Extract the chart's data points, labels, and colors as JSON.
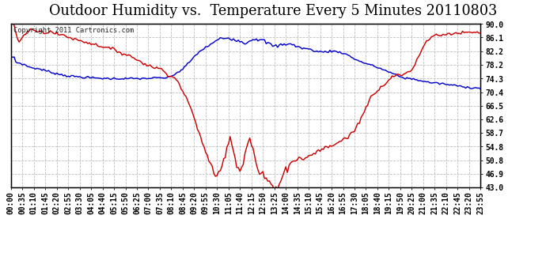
{
  "title": "Outdoor Humidity vs.  Temperature Every 5 Minutes 20110803",
  "copyright_text": "Copyright 2011 Cartronics.com",
  "background_color": "#ffffff",
  "plot_bg_color": "#ffffff",
  "grid_color": "#bbbbbb",
  "line_color_humidity": "#0000cc",
  "line_color_temp": "#cc0000",
  "ylim": [
    43.0,
    90.0
  ],
  "yticks": [
    43.0,
    46.9,
    50.8,
    54.8,
    58.7,
    62.6,
    66.5,
    70.4,
    74.3,
    78.2,
    82.2,
    86.1,
    90.0
  ],
  "title_fontsize": 11,
  "tick_fontsize": 6.0,
  "copyright_fontsize": 5.5
}
